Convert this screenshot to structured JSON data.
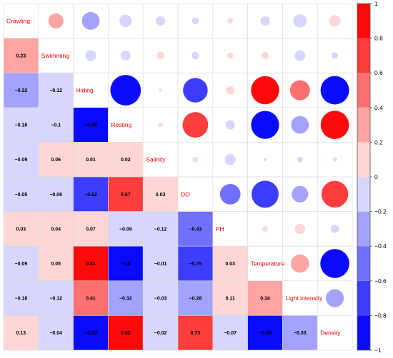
{
  "chart_data": {
    "type": "heatmap",
    "variables": [
      "Crawling",
      "Swimming",
      "Hiding",
      "Resting",
      "Salinity",
      "DO",
      "PH",
      "Temperature",
      "Light intensity",
      "Density"
    ],
    "lower_values": [
      [
        null,
        null,
        null,
        null,
        null,
        null,
        null,
        null,
        null,
        null
      ],
      [
        0.23,
        null,
        null,
        null,
        null,
        null,
        null,
        null,
        null,
        null
      ],
      [
        -0.32,
        -0.12,
        null,
        null,
        null,
        null,
        null,
        null,
        null,
        null
      ],
      [
        -0.16,
        -0.1,
        -0.95,
        null,
        null,
        null,
        null,
        null,
        null,
        null
      ],
      [
        -0.09,
        0.06,
        0.01,
        0.02,
        null,
        null,
        null,
        null,
        null,
        null
      ],
      [
        -0.05,
        -0.06,
        -0.62,
        0.67,
        0.03,
        null,
        null,
        null,
        null,
        null
      ],
      [
        0.03,
        0.04,
        0.07,
        -0.09,
        -0.12,
        -0.43,
        null,
        null,
        null,
        null
      ],
      [
        -0.09,
        0.05,
        0.81,
        -0.8,
        -0.01,
        -0.75,
        0.03,
        null,
        null,
        null
      ],
      [
        -0.18,
        -0.12,
        0.41,
        -0.32,
        -0.03,
        -0.28,
        0.11,
        0.34,
        null,
        null
      ],
      [
        0.13,
        -0.04,
        -0.83,
        0.82,
        -0.02,
        0.73,
        -0.07,
        -0.86,
        -0.33,
        null
      ]
    ],
    "lower_labels": [
      [
        null,
        null,
        null,
        null,
        null,
        null,
        null,
        null,
        null,
        null
      ],
      [
        "0.23",
        null,
        null,
        null,
        null,
        null,
        null,
        null,
        null,
        null
      ],
      [
        "−0.32",
        "−0.12",
        null,
        null,
        null,
        null,
        null,
        null,
        null,
        null
      ],
      [
        "−0.16",
        "−0.1",
        "−0.95",
        null,
        null,
        null,
        null,
        null,
        null,
        null
      ],
      [
        "−0.09",
        "0.06",
        "0.01",
        "0.02",
        null,
        null,
        null,
        null,
        null,
        null
      ],
      [
        "−0.05",
        "−0.06",
        "−0.62",
        "0.67",
        "0.03",
        null,
        null,
        null,
        null,
        null
      ],
      [
        "0.03",
        "0.04",
        "0.07",
        "−0.09",
        "−0.12",
        "−0.43",
        null,
        null,
        null,
        null
      ],
      [
        "−0.09",
        "0.05",
        "0.81",
        "−0.8",
        "−0.01",
        "−0.75",
        "0.03",
        null,
        null,
        null
      ],
      [
        "−0.18",
        "−0.12",
        "0.41",
        "−0.32",
        "−0.03",
        "−0.28",
        "0.11",
        "0.34",
        null,
        null
      ],
      [
        "0.13",
        "−0.04",
        "−0.83",
        "0.82",
        "−0.02",
        "0.73",
        "−0.07",
        "−0.86",
        "−0.33",
        null
      ]
    ],
    "upper_display": "circles",
    "diagonal_display": "variable names",
    "colorbar": {
      "min": -1,
      "max": 1,
      "ticks": [
        -1,
        -0.8,
        -0.6,
        -0.4,
        -0.2,
        0,
        0.2,
        0.4,
        0.6,
        0.8,
        1
      ],
      "tick_labels": [
        "−1",
        "−0.8",
        "−0.6",
        "−0.4",
        "−0.2",
        "0",
        "0.2",
        "0.4",
        "0.6",
        "0.8",
        "1"
      ],
      "position": "right"
    },
    "colors": {
      "negative": "#0000ff",
      "zero": "#ffffff",
      "positive": "#ff0000",
      "label_text": "#ff0000",
      "grid": "#d9d9d9"
    }
  }
}
